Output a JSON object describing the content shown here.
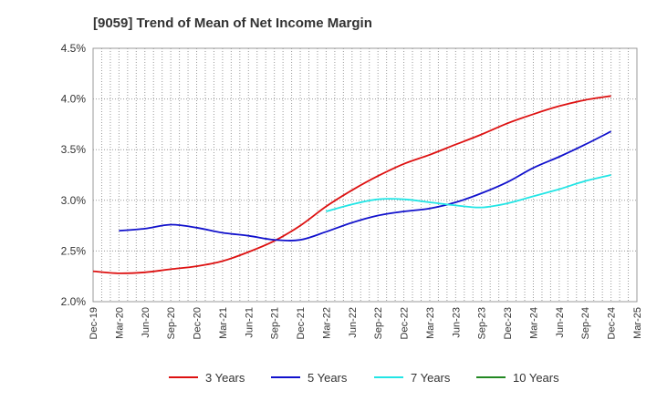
{
  "chart_data": {
    "type": "line",
    "title": "[9059]  Trend of Mean of Net Income Margin",
    "xlabel": "",
    "ylabel": "",
    "ylim": [
      2.0,
      4.5
    ],
    "y_ticks": [
      "2.0%",
      "2.5%",
      "3.0%",
      "3.5%",
      "4.0%",
      "4.5%"
    ],
    "y_tick_values": [
      2.0,
      2.5,
      3.0,
      3.5,
      4.0,
      4.5
    ],
    "x_ticks": [
      "Dec-19",
      "Mar-20",
      "Jun-20",
      "Sep-20",
      "Dec-20",
      "Mar-21",
      "Jun-21",
      "Sep-21",
      "Dec-21",
      "Mar-22",
      "Jun-22",
      "Sep-22",
      "Dec-22",
      "Mar-23",
      "Jun-23",
      "Sep-23",
      "Dec-23",
      "Mar-24",
      "Jun-24",
      "Sep-24",
      "Dec-24",
      "Mar-25"
    ],
    "grid": true,
    "legend_position": "bottom",
    "series": [
      {
        "name": "3 Years",
        "color": "#dd1111",
        "values": [
          2.3,
          2.28,
          2.29,
          2.32,
          2.35,
          2.4,
          2.49,
          2.6,
          2.75,
          2.94,
          3.1,
          3.24,
          3.36,
          3.45,
          3.55,
          3.65,
          3.76,
          3.85,
          3.93,
          3.99,
          4.03,
          null
        ]
      },
      {
        "name": "5 Years",
        "color": "#1111cc",
        "values": [
          null,
          2.7,
          2.72,
          2.76,
          2.73,
          2.68,
          2.65,
          2.61,
          2.61,
          2.69,
          2.78,
          2.85,
          2.89,
          2.92,
          2.98,
          3.07,
          3.18,
          3.32,
          3.43,
          3.55,
          3.68,
          null
        ]
      },
      {
        "name": "7 Years",
        "color": "#22e5e5",
        "values": [
          null,
          null,
          null,
          null,
          null,
          null,
          null,
          null,
          null,
          2.89,
          2.96,
          3.01,
          3.01,
          2.98,
          2.95,
          2.93,
          2.97,
          3.04,
          3.11,
          3.19,
          3.25,
          null
        ]
      },
      {
        "name": "10 Years",
        "color": "#228822",
        "values": [
          null,
          null,
          null,
          null,
          null,
          null,
          null,
          null,
          null,
          null,
          null,
          null,
          null,
          null,
          null,
          null,
          null,
          null,
          null,
          null,
          null,
          null
        ]
      }
    ]
  }
}
